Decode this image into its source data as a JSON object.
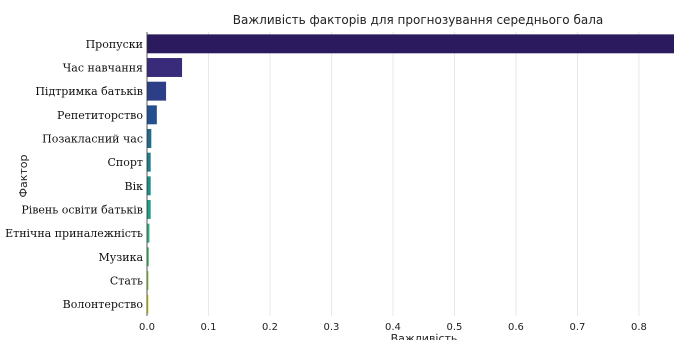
{
  "chart_data": {
    "type": "bar",
    "orientation": "horizontal",
    "title": "Важливість факторів для прогнозування середнього бала",
    "xlabel": "Важливість",
    "ylabel": "Фактор",
    "categories": [
      "Пропуски",
      "Час навчання",
      "Підтримка батьків",
      "Репетиторство",
      "Позакласний час",
      "Спорт",
      "Вік",
      "Рівень освіти батьків",
      "Етнічна приналежність",
      "Музика",
      "Стать",
      "Волонтерство"
    ],
    "values": [
      0.857,
      0.057,
      0.031,
      0.016,
      0.007,
      0.006,
      0.006,
      0.006,
      0.004,
      0.003,
      0.002,
      0.002
    ],
    "colors": [
      "#2b1a5e",
      "#3a2a7a",
      "#2c3f86",
      "#25508f",
      "#236a8a",
      "#1f7f8a",
      "#1a8f89",
      "#1ea085",
      "#2eb27c",
      "#4cc36a",
      "#8fd744",
      "#d7e219"
    ],
    "xlim": [
      0,
      0.87
    ],
    "xticks": [
      "0.0",
      "0.1",
      "0.2",
      "0.3",
      "0.4",
      "0.5",
      "0.6",
      "0.7",
      "0.8"
    ],
    "grid": "vertical"
  }
}
